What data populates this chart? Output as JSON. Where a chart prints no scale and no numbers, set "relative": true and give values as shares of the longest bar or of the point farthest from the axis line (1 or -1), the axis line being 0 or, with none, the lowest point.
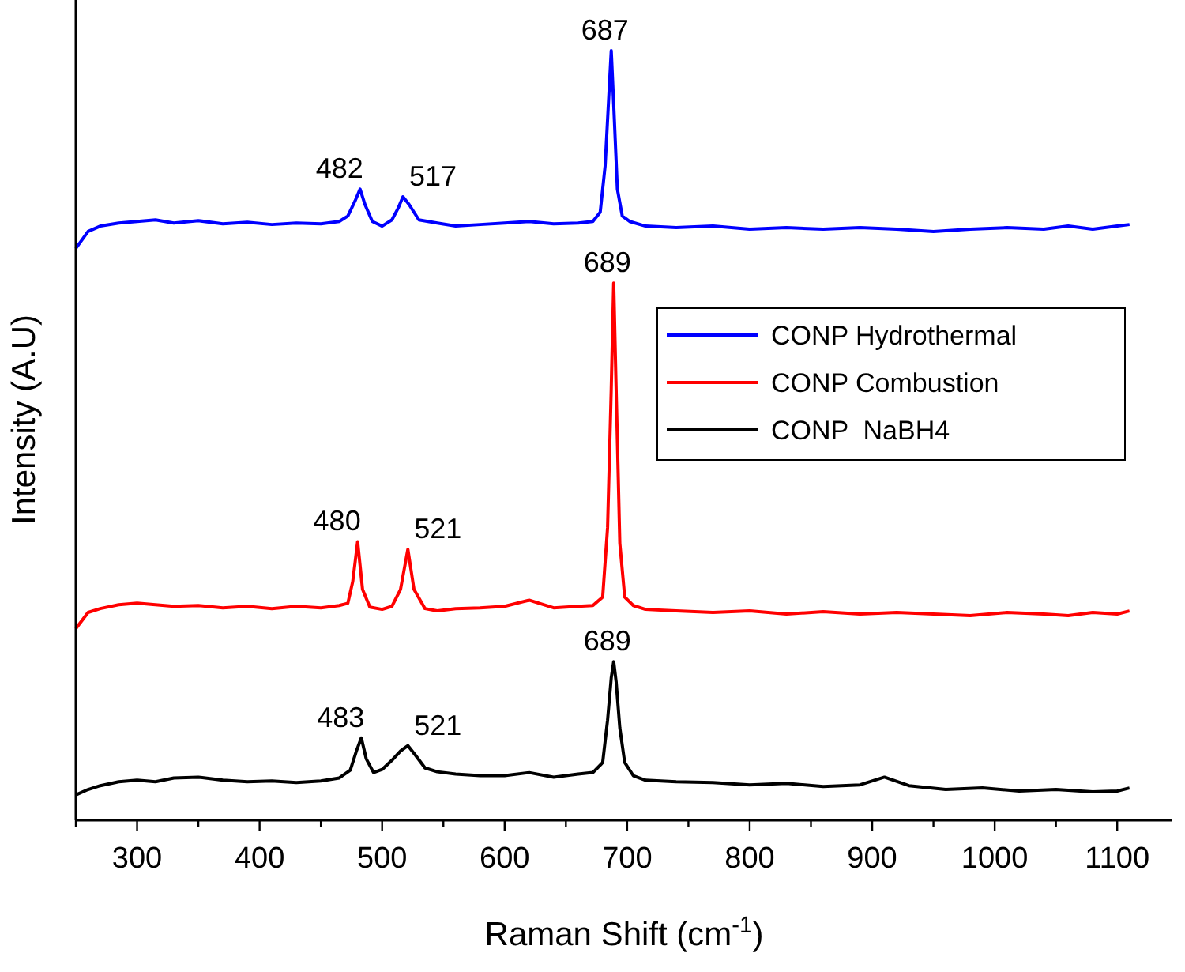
{
  "chart_data": {
    "type": "line",
    "xlabel": "Raman Shift (cm$^{-1}$)",
    "ylabel": "Intensity (A.U)",
    "relative": true,
    "legend": "right",
    "grid": false,
    "marker": "none",
    "line_style": "solid",
    "xlim": [
      250,
      1145
    ],
    "xticks": [
      {
        "value": 250,
        "label": null
      },
      300,
      {
        "value": 350,
        "label": null
      },
      400,
      {
        "value": 450,
        "label": null
      },
      500,
      {
        "value": 550,
        "label": null
      },
      600,
      {
        "value": 650,
        "label": null
      },
      700,
      {
        "value": 750,
        "label": null
      },
      800,
      {
        "value": 850,
        "label": null
      },
      900,
      {
        "value": 950,
        "label": null
      },
      1000,
      {
        "value": 1050,
        "label": null
      },
      1100
    ],
    "series": [
      {
        "name": "CONP Hydrothermal",
        "color": "#0000ff",
        "x": [
          250,
          260,
          270,
          285,
          300,
          315,
          330,
          350,
          370,
          390,
          410,
          430,
          450,
          465,
          472,
          478,
          482,
          486,
          492,
          500,
          508,
          513,
          517,
          522,
          530,
          545,
          560,
          580,
          600,
          620,
          640,
          660,
          672,
          678,
          682,
          685,
          687,
          689,
          692,
          696,
          702,
          715,
          740,
          770,
          800,
          830,
          860,
          890,
          920,
          950,
          980,
          1010,
          1040,
          1060,
          1080,
          1100,
          1110
        ],
        "values": [
          0.743,
          0.765,
          0.772,
          0.776,
          0.778,
          0.78,
          0.776,
          0.779,
          0.775,
          0.777,
          0.774,
          0.776,
          0.775,
          0.778,
          0.785,
          0.805,
          0.82,
          0.8,
          0.778,
          0.772,
          0.78,
          0.795,
          0.81,
          0.8,
          0.78,
          0.776,
          0.772,
          0.774,
          0.776,
          0.778,
          0.775,
          0.776,
          0.778,
          0.79,
          0.85,
          0.94,
          1.0,
          0.93,
          0.82,
          0.785,
          0.778,
          0.772,
          0.77,
          0.772,
          0.768,
          0.77,
          0.768,
          0.77,
          0.768,
          0.765,
          0.768,
          0.77,
          0.768,
          0.772,
          0.768,
          0.772,
          0.774
        ]
      },
      {
        "name": "CONP Combustion",
        "color": "#ff0000",
        "x": [
          250,
          260,
          270,
          285,
          300,
          315,
          330,
          350,
          370,
          390,
          410,
          430,
          450,
          465,
          472,
          476,
          480,
          484,
          490,
          500,
          508,
          515,
          521,
          526,
          535,
          545,
          560,
          580,
          600,
          620,
          640,
          660,
          672,
          680,
          684,
          687,
          689,
          691,
          694,
          698,
          705,
          715,
          740,
          770,
          800,
          830,
          860,
          890,
          920,
          950,
          980,
          1010,
          1040,
          1060,
          1080,
          1100,
          1110
        ],
        "values": [
          0.249,
          0.27,
          0.275,
          0.28,
          0.282,
          0.28,
          0.278,
          0.279,
          0.276,
          0.278,
          0.275,
          0.278,
          0.276,
          0.279,
          0.282,
          0.31,
          0.362,
          0.3,
          0.277,
          0.274,
          0.278,
          0.3,
          0.352,
          0.3,
          0.275,
          0.272,
          0.275,
          0.276,
          0.278,
          0.286,
          0.276,
          0.278,
          0.279,
          0.29,
          0.38,
          0.56,
          0.698,
          0.56,
          0.36,
          0.29,
          0.279,
          0.274,
          0.272,
          0.27,
          0.272,
          0.268,
          0.271,
          0.268,
          0.27,
          0.268,
          0.266,
          0.27,
          0.268,
          0.266,
          0.27,
          0.268,
          0.272
        ]
      },
      {
        "name": "CONP  NaBH4",
        "color": "#000000",
        "x": [
          250,
          260,
          270,
          285,
          300,
          315,
          330,
          350,
          370,
          390,
          410,
          430,
          450,
          465,
          474,
          479,
          483,
          487,
          493,
          500,
          508,
          515,
          521,
          527,
          535,
          545,
          560,
          580,
          600,
          620,
          640,
          660,
          672,
          680,
          684,
          687,
          689,
          691,
          694,
          698,
          705,
          715,
          740,
          770,
          800,
          830,
          860,
          890,
          910,
          930,
          960,
          990,
          1020,
          1050,
          1080,
          1100,
          1110
        ],
        "values": [
          0.033,
          0.04,
          0.045,
          0.05,
          0.052,
          0.05,
          0.055,
          0.056,
          0.052,
          0.05,
          0.051,
          0.049,
          0.051,
          0.055,
          0.065,
          0.09,
          0.107,
          0.08,
          0.062,
          0.066,
          0.078,
          0.09,
          0.097,
          0.085,
          0.068,
          0.063,
          0.06,
          0.058,
          0.058,
          0.062,
          0.056,
          0.06,
          0.062,
          0.075,
          0.13,
          0.185,
          0.206,
          0.18,
          0.12,
          0.075,
          0.058,
          0.052,
          0.05,
          0.049,
          0.046,
          0.048,
          0.044,
          0.046,
          0.056,
          0.045,
          0.04,
          0.042,
          0.038,
          0.04,
          0.037,
          0.038,
          0.042
        ]
      }
    ],
    "annotations": [
      {
        "text": "687",
        "x": 687,
        "y": 1.0
      },
      {
        "text": "482",
        "x": 482,
        "y": 0.82
      },
      {
        "text": "517",
        "x": 517,
        "y": 0.81
      },
      {
        "text": "689",
        "x": 689,
        "y": 0.698
      },
      {
        "text": "480",
        "x": 480,
        "y": 0.362
      },
      {
        "text": "521",
        "x": 521,
        "y": 0.352
      },
      {
        "text": "689",
        "x": 689,
        "y": 0.206
      },
      {
        "text": "483",
        "x": 483,
        "y": 0.107
      },
      {
        "text": "521",
        "x": 521,
        "y": 0.097
      }
    ]
  }
}
